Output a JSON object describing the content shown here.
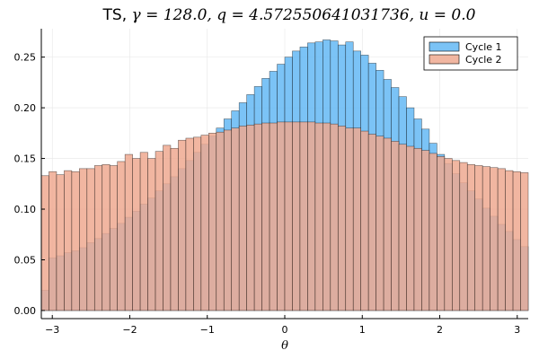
{
  "chart_data": {
    "type": "bar",
    "title_prefix": "TS, ",
    "title_math": "γ = 128.0, q = 4.572550641031736, u = 0.0",
    "xlabel": "θ",
    "ylabel": "",
    "xlim": [
      -3.14159,
      3.14159
    ],
    "ylim": [
      -0.008,
      0.278
    ],
    "bin_count": 64,
    "xticks": [
      -3,
      -2,
      -1,
      0,
      1,
      2,
      3
    ],
    "xtick_labels": [
      "−3",
      "−2",
      "−1",
      "0",
      "1",
      "2",
      "3"
    ],
    "yticks": [
      0.0,
      0.05,
      0.1,
      0.15,
      0.2,
      0.25
    ],
    "ytick_labels": [
      "0.00",
      "0.05",
      "0.10",
      "0.15",
      "0.20",
      "0.25"
    ],
    "grid": true,
    "legend_position": "top-right",
    "series": [
      {
        "name": "Cycle 1",
        "color": "#64b9f5",
        "values": [
          0.02,
          0.052,
          0.054,
          0.057,
          0.059,
          0.062,
          0.067,
          0.071,
          0.076,
          0.081,
          0.086,
          0.092,
          0.098,
          0.105,
          0.111,
          0.118,
          0.125,
          0.132,
          0.14,
          0.148,
          0.156,
          0.164,
          0.172,
          0.18,
          0.189,
          0.197,
          0.205,
          0.213,
          0.221,
          0.229,
          0.236,
          0.243,
          0.25,
          0.256,
          0.26,
          0.264,
          0.265,
          0.267,
          0.266,
          0.262,
          0.265,
          0.256,
          0.252,
          0.244,
          0.237,
          0.228,
          0.22,
          0.211,
          0.2,
          0.189,
          0.179,
          0.165,
          0.154,
          0.145,
          0.135,
          0.126,
          0.118,
          0.11,
          0.101,
          0.093,
          0.085,
          0.078,
          0.07,
          0.063
        ]
      },
      {
        "name": "Cycle 2",
        "color": "#eea990",
        "values": [
          0.133,
          0.137,
          0.134,
          0.138,
          0.137,
          0.14,
          0.14,
          0.143,
          0.144,
          0.143,
          0.147,
          0.154,
          0.15,
          0.156,
          0.15,
          0.157,
          0.163,
          0.16,
          0.168,
          0.17,
          0.171,
          0.173,
          0.175,
          0.176,
          0.178,
          0.18,
          0.182,
          0.183,
          0.184,
          0.185,
          0.185,
          0.186,
          0.186,
          0.186,
          0.186,
          0.186,
          0.185,
          0.185,
          0.184,
          0.182,
          0.18,
          0.18,
          0.177,
          0.174,
          0.172,
          0.17,
          0.167,
          0.164,
          0.162,
          0.16,
          0.158,
          0.155,
          0.152,
          0.15,
          0.148,
          0.146,
          0.144,
          0.143,
          0.142,
          0.141,
          0.14,
          0.138,
          0.137,
          0.136
        ]
      }
    ]
  }
}
